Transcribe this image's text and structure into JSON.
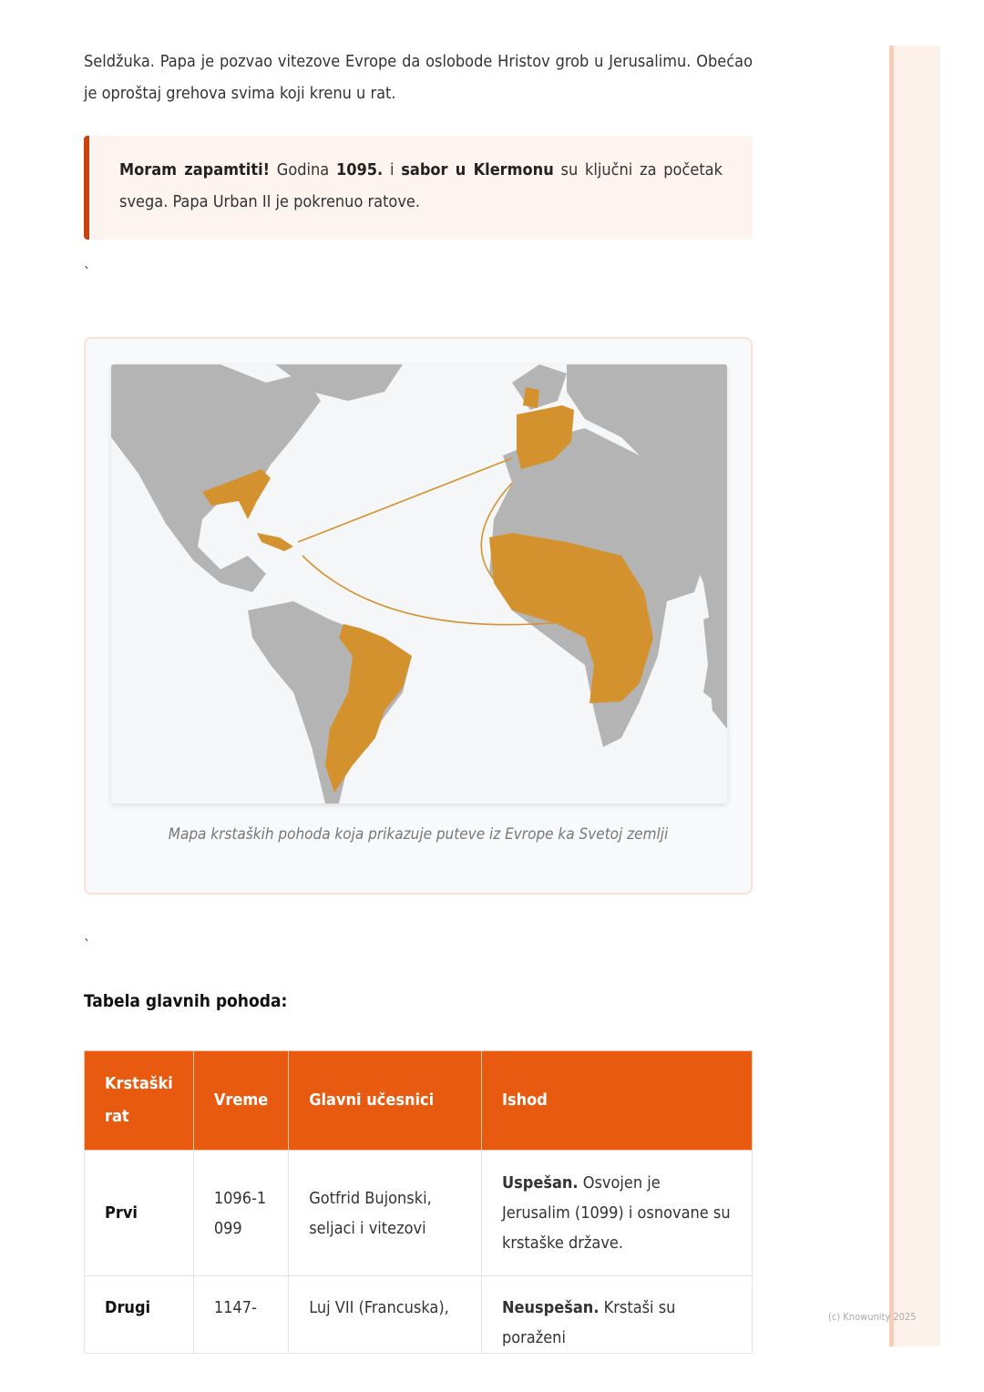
{
  "intro": "Seldžuka. Papa je pozvao vitezove Evrope da oslobode Hristov grob u Jerusalimu. Obećao je oproštaj grehova svima koji krenu u rat.",
  "callout": {
    "label": "Moram zapamtiti!",
    "t1": " Godina ",
    "year": "1095.",
    "t2": " i ",
    "council": "sabor u Klermonu",
    "t3": " su ključni za početak svega. Papa Urban II je pokrenuo ratove."
  },
  "backtick": "`",
  "map": {
    "caption": "Mapa krstaških pohoda koja prikazuje puteve iz Evrope ka Svetoj zemlji",
    "land_color": "#b4b4b4",
    "highlight_color": "#d4922e"
  },
  "table": {
    "title": "Tabela glavnih pohoda:",
    "headers": [
      "Krstaški rat",
      "Vreme",
      "Glavni učesnici",
      "Ishod"
    ],
    "rows": [
      {
        "name": "Prvi",
        "time": "1096-1099",
        "people": "Gotfrid Bujonski, seljaci i vitezovi",
        "outcome_bold": "Uspešan.",
        "outcome": " Osvojen je Jerusalim (1099) i osnovane su krstaške države."
      },
      {
        "name": "Drugi",
        "time": "1147-",
        "people": "Luj VII (Francuska),",
        "outcome_bold": "Neuspešan.",
        "outcome": " Krstaši su poraženi"
      }
    ]
  },
  "footer": "(c) Knowunity 2025",
  "accent": "#e85a10"
}
